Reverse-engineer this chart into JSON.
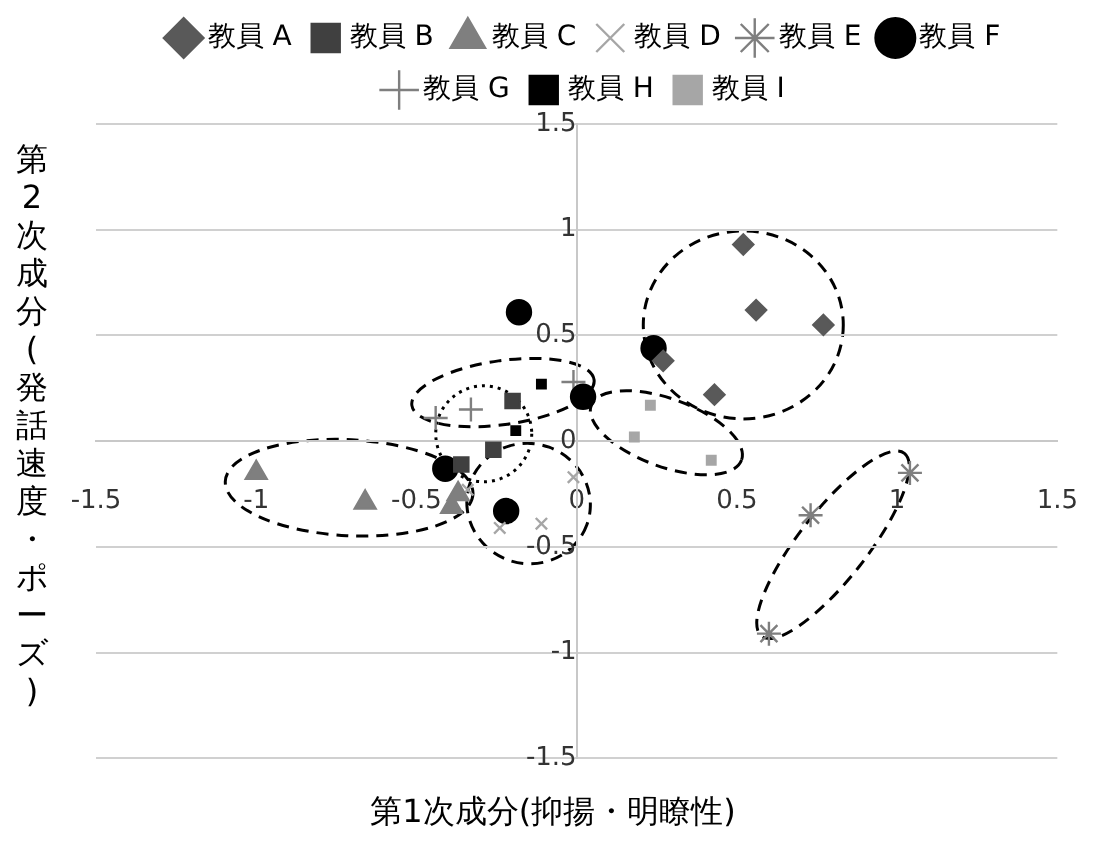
{
  "chart_data": {
    "type": "scatter",
    "xlabel": "第1次成分(抑揚・明瞭性)",
    "ylabel": "第2次成分(発話速度・ポーズ)",
    "xlim": [
      -1.5,
      1.5
    ],
    "ylim": [
      -1.5,
      1.5
    ],
    "xticks": [
      -1.5,
      -1,
      -0.5,
      0,
      0.5,
      1,
      1.5
    ],
    "yticks": [
      -1.5,
      -1,
      -0.5,
      0,
      0.5,
      1,
      1.5
    ],
    "grid": "y",
    "legend": "top",
    "series": [
      {
        "name": "教員 A",
        "color": "#595959",
        "marker": "diamond",
        "x": [
          0.52,
          0.56,
          0.77,
          0.27,
          0.43
        ],
        "values": [
          0.93,
          0.62,
          0.55,
          0.38,
          0.22
        ]
      },
      {
        "name": "教員 B",
        "color": "#404040",
        "marker": "square",
        "x": [
          -0.2,
          -0.26,
          -0.36
        ],
        "values": [
          0.19,
          -0.04,
          -0.11
        ]
      },
      {
        "name": "教員 C",
        "color": "#7f7f7f",
        "marker": "triangle",
        "x": [
          -1.0,
          -0.66,
          -0.39,
          -0.37
        ],
        "values": [
          -0.15,
          -0.29,
          -0.31,
          -0.25
        ]
      },
      {
        "name": "教員 D",
        "color": "#a6a6a6",
        "marker": "cross",
        "x": [
          -0.01,
          -0.11,
          -0.24,
          -0.34
        ],
        "values": [
          -0.17,
          -0.39,
          -0.41,
          -0.23
        ]
      },
      {
        "name": "教員 E",
        "color": "#7f7f7f",
        "x": [
          1.04,
          0.73,
          0.6
        ],
        "values": [
          -0.15,
          -0.35,
          -0.91
        ]
      },
      {
        "name": "教員 F",
        "color": "#000000",
        "marker": "circle",
        "x": [
          -0.18,
          0.24,
          0.02,
          -0.41,
          -0.22
        ],
        "values": [
          0.61,
          0.44,
          0.21,
          -0.13,
          -0.33
        ]
      },
      {
        "name": "教員 G",
        "color": "#7f7f7f",
        "x": [
          -0.01,
          -0.33,
          -0.44
        ],
        "values": [
          0.28,
          0.15,
          0.11
        ]
      },
      {
        "name": "教員 H",
        "color": "#000000",
        "x": [
          -0.11,
          -0.19
        ],
        "values": [
          0.27,
          0.05
        ]
      },
      {
        "name": "教員 I",
        "color": "#a6a6a6",
        "x": [
          0.23,
          0.18,
          0.42
        ],
        "values": [
          0.17,
          0.02,
          -0.09
        ]
      }
    ]
  }
}
